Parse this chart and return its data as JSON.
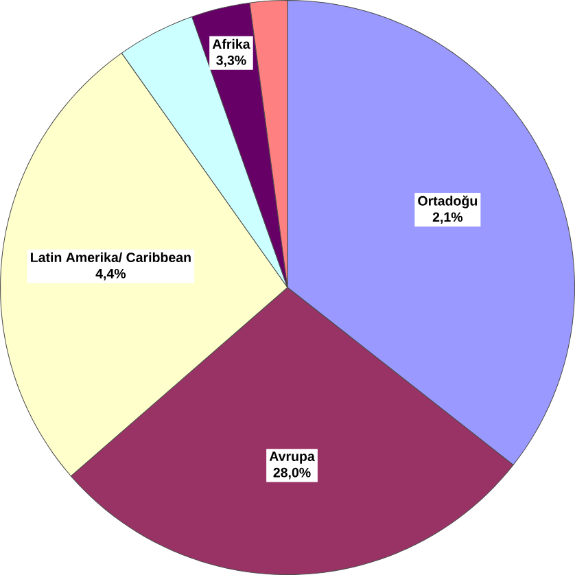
{
  "chart_data": {
    "type": "pie",
    "categories": [
      "Ortadoğu",
      "Avrupa",
      "Latin Amerika/ Caribbean",
      null,
      "Afrika",
      null
    ],
    "values": [
      35.6,
      28.0,
      26.6,
      4.4,
      3.3,
      2.1
    ],
    "value_labels": [
      null,
      "28,0%",
      null,
      null,
      null,
      null
    ],
    "annotations": [
      "2,1%",
      "4,4%",
      "3,3%"
    ],
    "colors": [
      "#9999ff",
      "#993366",
      "#ffffcc",
      "#ccffff",
      "#660066",
      "#ff8080"
    ]
  }
}
